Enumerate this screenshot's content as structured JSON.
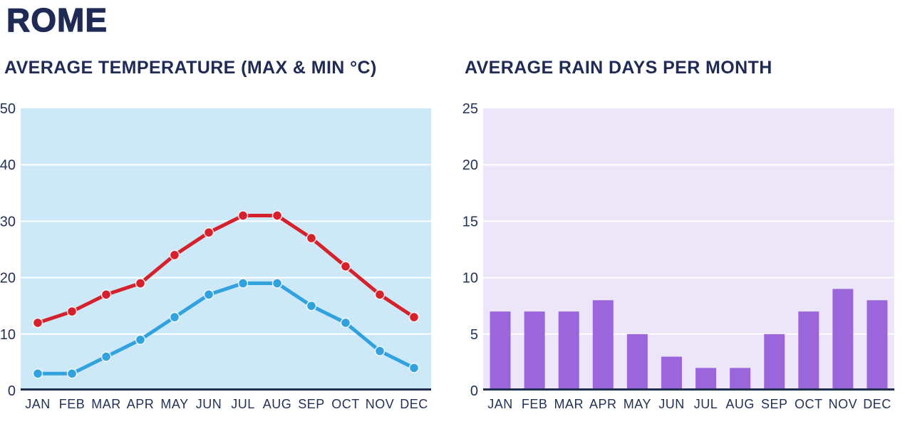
{
  "page": {
    "title": "ROME",
    "background_color": "#ffffff",
    "title_color": "#1f2b55",
    "label_color": "#233156"
  },
  "chart_data": [
    {
      "id": "temperature",
      "type": "line",
      "title": "AVERAGE TEMPERATURE (MAX & MIN °C)",
      "categories": [
        "JAN",
        "FEB",
        "MAR",
        "APR",
        "MAY",
        "JUN",
        "JUL",
        "AUG",
        "SEP",
        "OCT",
        "NOV",
        "DEC"
      ],
      "series": [
        {
          "name": "temp-max",
          "color": "#d6212d",
          "values": [
            12,
            14,
            17,
            19,
            24,
            28,
            31,
            31,
            27,
            22,
            17,
            13
          ]
        },
        {
          "name": "temp-min",
          "color": "#31a2dd",
          "values": [
            3,
            3,
            6,
            9,
            13,
            17,
            19,
            19,
            15,
            12,
            7,
            4
          ]
        }
      ],
      "ylim": [
        0,
        50
      ],
      "yticks": [
        0,
        10,
        20,
        30,
        40,
        50
      ],
      "xlabel": "",
      "ylabel": "",
      "legend": "none",
      "grid": true,
      "plot_background": "#cde9f7",
      "gridline_color": "#ffffff",
      "axis_line_color": "#233150"
    },
    {
      "id": "rain",
      "type": "bar",
      "title": "AVERAGE RAIN DAYS PER MONTH",
      "categories": [
        "JAN",
        "FEB",
        "MAR",
        "APR",
        "MAY",
        "JUN",
        "JUL",
        "AUG",
        "SEP",
        "OCT",
        "NOV",
        "DEC"
      ],
      "values": [
        7,
        7,
        7,
        8,
        5,
        3,
        2,
        2,
        5,
        7,
        9,
        8
      ],
      "bar_color": "#9b65dc",
      "ylim": [
        0,
        25
      ],
      "yticks": [
        0,
        5,
        10,
        15,
        20,
        25
      ],
      "xlabel": "",
      "ylabel": "",
      "legend": "none",
      "grid": true,
      "plot_background": "#ede6f8",
      "gridline_color": "#ffffff",
      "axis_line_color": "#233150"
    }
  ]
}
